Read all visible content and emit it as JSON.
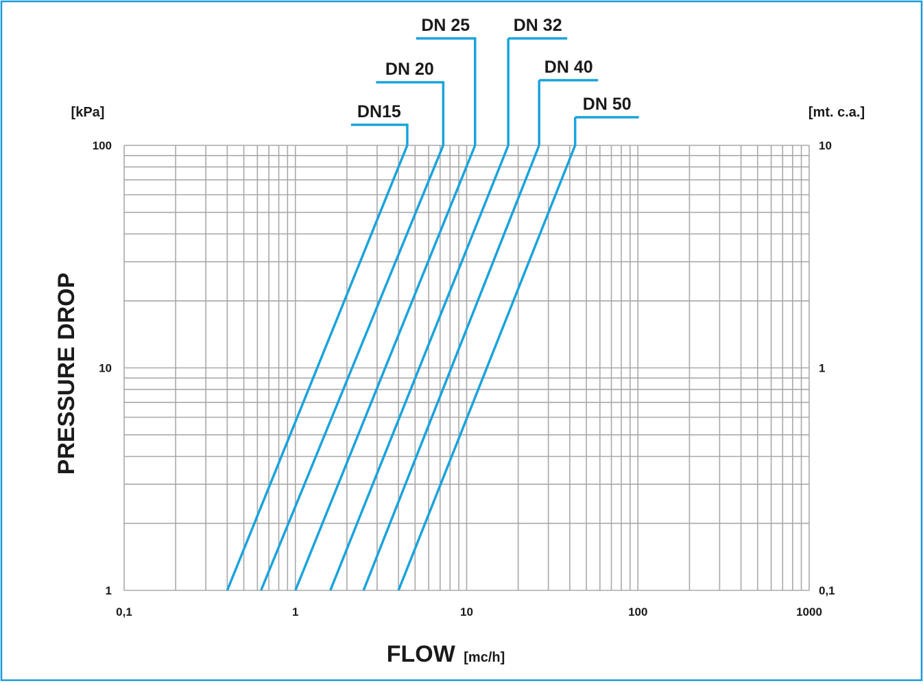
{
  "chart_data": {
    "type": "line",
    "x_scale": "log",
    "y_scale": "log",
    "xlim": [
      0.1,
      1000
    ],
    "ylim": [
      1,
      100
    ],
    "y2lim": [
      0.1,
      10
    ],
    "grid": true,
    "xlabel": "FLOW",
    "xlabel_unit": "[mc/h]",
    "ylabel": "PRESSURE DROP",
    "y_unit_left": "[kPa]",
    "y_unit_right": "[mt. c.a.]",
    "x_ticks": [
      "0,1",
      "1",
      "10",
      "100",
      "1000"
    ],
    "y_ticks_left": [
      "1",
      "10",
      "100"
    ],
    "y_ticks_right": [
      "0,1",
      "1",
      "10"
    ],
    "series": [
      {
        "name": "DN15",
        "x": [
          0.4,
          4.5
        ],
        "y": [
          1,
          100
        ]
      },
      {
        "name": "DN 20",
        "x": [
          0.63,
          7.3
        ],
        "y": [
          1,
          100
        ]
      },
      {
        "name": "DN 25",
        "x": [
          1.0,
          11.2
        ],
        "y": [
          1,
          100
        ]
      },
      {
        "name": "DN 32",
        "x": [
          1.6,
          17.5
        ],
        "y": [
          1,
          100
        ]
      },
      {
        "name": "DN 40",
        "x": [
          2.5,
          26.5
        ],
        "y": [
          1,
          100
        ]
      },
      {
        "name": "DN 50",
        "x": [
          4.0,
          43.0
        ],
        "y": [
          1,
          100
        ]
      }
    ],
    "line_color": "#1aa3dc",
    "grid_color": "#a8a8a8",
    "frame_color": "#1a9ad6"
  }
}
